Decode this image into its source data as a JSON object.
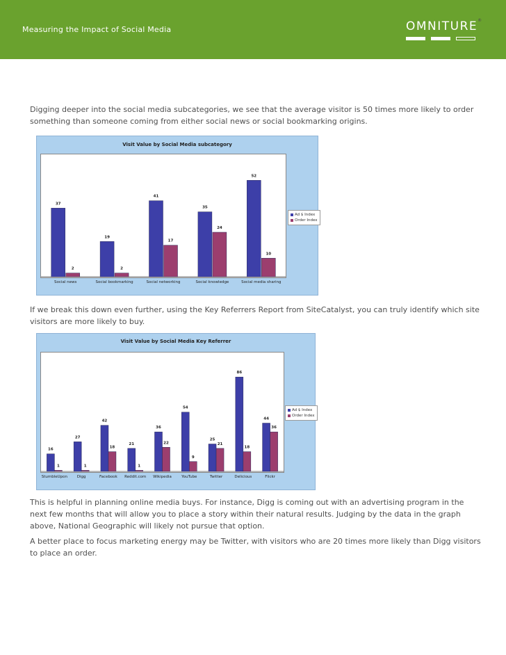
{
  "header": {
    "title": "Measuring the Impact of Social Media",
    "logo_text": "OMNITURE",
    "logo_mark": "®"
  },
  "colors": {
    "header_green": "#6aa22e",
    "series_blue": "#3d3fa8",
    "series_magenta": "#9c3e6e",
    "chart_bg": "#aed1ee"
  },
  "paragraphs": {
    "p1": "Digging deeper into the social media subcategories, we see that the average visitor is 50 times more likely to order something than someone coming from either social news or social bookmarking origins.",
    "p2": "If we break this down even further, using the Key Referrers Report from SiteCatalyst, you can truly identify which site visitors are more likely to buy.",
    "p3": "This is helpful in planning online media buys. For instance, Digg is coming out with an advertising program in the next few months that will allow you to place a story within their natural results. Judging by the data in the graph above, National Geographic will likely not pursue that option.",
    "p4": "A better place to focus marketing energy may be Twitter, with visitors who are 20 times more likely than Digg visitors to place an order."
  },
  "chart_data": [
    {
      "type": "bar",
      "title": "Visit Value by Social Media subcategory",
      "categories": [
        "Social news",
        "Social bookmarking",
        "Social networking",
        "Social knowledge",
        "Social media sharing"
      ],
      "series": [
        {
          "name": "Ad $ Index",
          "values": [
            37,
            19,
            41,
            35,
            52
          ]
        },
        {
          "name": "Order Index",
          "values": [
            2,
            2,
            17,
            24,
            10
          ]
        }
      ],
      "data_labels": [
        [
          "37",
          "19",
          "41",
          "35",
          "52"
        ],
        [
          "2",
          "2",
          "17",
          "24",
          "10"
        ]
      ],
      "ylim": [
        0,
        60
      ],
      "legend": "right",
      "grid": false
    },
    {
      "type": "bar",
      "title": "Visit Value by Social Media Key Referrer",
      "categories": [
        "StumbleUpon",
        "Digg",
        "Facebook",
        "Reddit.com",
        "Wikipedia",
        "YouTube",
        "Twitter",
        "Delicious",
        "Flickr"
      ],
      "series": [
        {
          "name": "Ad $ Index",
          "values": [
            16,
            27,
            42,
            21,
            36,
            54,
            25,
            86,
            44
          ]
        },
        {
          "name": "Order Index",
          "values": [
            1,
            1,
            18,
            1,
            22,
            9,
            21,
            18,
            36
          ]
        }
      ],
      "data_labels": [
        [
          "16",
          "27",
          "42",
          "21",
          "36",
          "54",
          "25",
          "86",
          "44"
        ],
        [
          "1",
          "1",
          "18",
          "1",
          "22",
          "9",
          "21",
          "18",
          "36"
        ]
      ],
      "ylim": [
        0,
        95
      ],
      "legend": "right",
      "grid": false
    }
  ]
}
